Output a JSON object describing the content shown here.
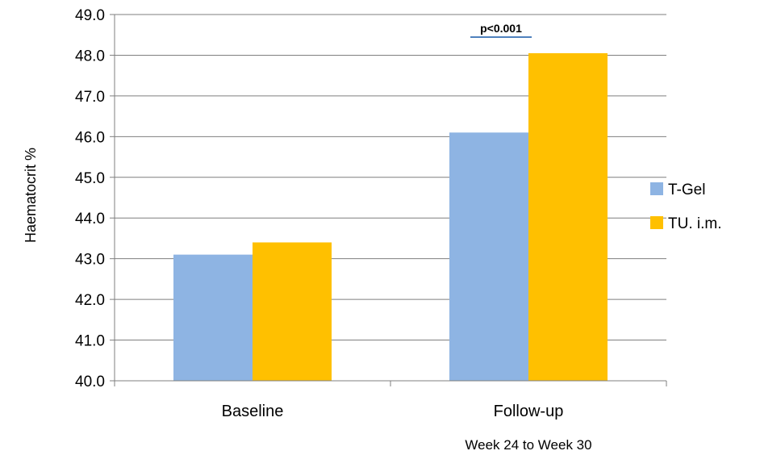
{
  "chart_data": {
    "type": "bar",
    "title": "",
    "xlabel": "",
    "ylabel": "Haematocrit %",
    "categories": [
      "Baseline",
      "Follow-up"
    ],
    "category_sublabels": [
      "",
      "Week 24 to Week 30"
    ],
    "series": [
      {
        "name": "T-Gel",
        "values": [
          43.1,
          46.1
        ]
      },
      {
        "name": "TU. i.m.",
        "values": [
          43.4,
          48.05
        ]
      }
    ],
    "ylim": [
      40.0,
      49.0
    ],
    "ytick_step": 1.0,
    "yticks": [
      "40.0",
      "41.0",
      "42.0",
      "43.0",
      "44.0",
      "45.0",
      "46.0",
      "47.0",
      "48.0",
      "49.0"
    ],
    "grid": true,
    "legend_position": "right",
    "annotations": [
      {
        "text": "p<0.001",
        "category": "Follow-up"
      }
    ]
  },
  "colors": {
    "series": [
      "#8eb4e3",
      "#ffc000"
    ],
    "grid": "#7f7f7f",
    "axis": "#7f7f7f",
    "annotation_line": "#4f81bd"
  }
}
